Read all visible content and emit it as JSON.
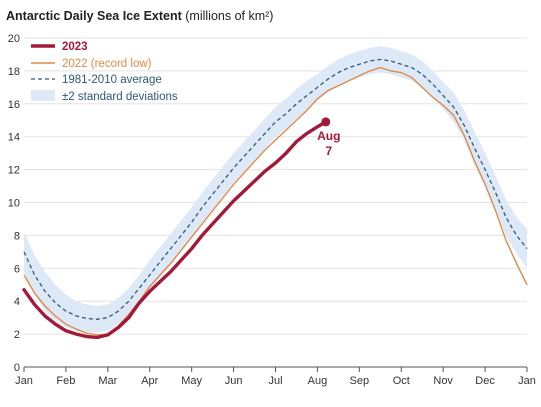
{
  "chart_data": {
    "type": "line",
    "title": "Antarctic Daily Sea Ice Extent",
    "title_unit": "(millions of km²)",
    "xlabel": "",
    "ylabel": "",
    "x_ticks": [
      "Jan",
      "Feb",
      "Mar",
      "Apr",
      "May",
      "Jun",
      "Jul",
      "Aug",
      "Sep",
      "Oct",
      "Nov",
      "Dec",
      "Jan"
    ],
    "xlim": [
      0,
      12
    ],
    "ylim": [
      0,
      20
    ],
    "y_ticks": [
      0,
      2,
      4,
      6,
      8,
      10,
      12,
      14,
      16,
      18,
      20
    ],
    "grid": "horizontal",
    "legend_position": "top-left",
    "series": [
      {
        "name": "2023",
        "color": "#a3193a",
        "style": "solid-thick",
        "x": [
          0,
          0.25,
          0.5,
          0.75,
          1,
          1.25,
          1.5,
          1.75,
          2,
          2.25,
          2.5,
          2.75,
          3,
          3.25,
          3.5,
          3.75,
          4,
          4.25,
          4.5,
          4.75,
          5,
          5.25,
          5.5,
          5.75,
          6,
          6.25,
          6.5,
          6.75,
          7,
          7.2
        ],
        "values": [
          4.7,
          3.8,
          3.1,
          2.6,
          2.2,
          2.0,
          1.85,
          1.8,
          1.95,
          2.4,
          3.0,
          3.9,
          4.6,
          5.2,
          5.8,
          6.5,
          7.2,
          8.0,
          8.7,
          9.4,
          10.1,
          10.7,
          11.3,
          11.9,
          12.4,
          13.0,
          13.7,
          14.2,
          14.6,
          14.9
        ],
        "end_label": [
          "Aug",
          "7"
        ]
      },
      {
        "name": "2022 (record low)",
        "color": "#e08a48",
        "style": "solid-thin",
        "x": [
          0,
          0.25,
          0.5,
          0.75,
          1,
          1.25,
          1.5,
          1.75,
          2,
          2.25,
          2.5,
          2.75,
          3,
          3.25,
          3.5,
          3.75,
          4,
          4.25,
          4.5,
          4.75,
          5,
          5.25,
          5.5,
          5.75,
          6,
          6.25,
          6.5,
          6.75,
          7,
          7.25,
          7.5,
          7.75,
          8,
          8.25,
          8.5,
          8.75,
          9,
          9.25,
          9.5,
          9.75,
          10,
          10.25,
          10.5,
          10.75,
          11,
          11.25,
          11.5,
          11.75,
          12
        ],
        "values": [
          5.6,
          4.5,
          3.7,
          3.1,
          2.6,
          2.3,
          2.05,
          1.95,
          2.0,
          2.5,
          3.2,
          4.0,
          4.9,
          5.6,
          6.3,
          7.1,
          7.9,
          8.7,
          9.5,
          10.3,
          11.1,
          11.8,
          12.5,
          13.2,
          13.8,
          14.4,
          15.0,
          15.6,
          16.3,
          16.8,
          17.1,
          17.4,
          17.7,
          18.0,
          18.2,
          18.0,
          17.9,
          17.6,
          17.0,
          16.4,
          15.9,
          15.3,
          14.1,
          12.5,
          11.1,
          9.5,
          7.7,
          6.3,
          5.0
        ]
      },
      {
        "name": "1981-2010 average",
        "color": "#2f5a72",
        "style": "dashed",
        "x": [
          0,
          0.25,
          0.5,
          0.75,
          1,
          1.25,
          1.5,
          1.75,
          2,
          2.25,
          2.5,
          2.75,
          3,
          3.25,
          3.5,
          3.75,
          4,
          4.25,
          4.5,
          4.75,
          5,
          5.25,
          5.5,
          5.75,
          6,
          6.25,
          6.5,
          6.75,
          7,
          7.25,
          7.5,
          7.75,
          8,
          8.25,
          8.5,
          8.75,
          9,
          9.25,
          9.5,
          9.75,
          10,
          10.25,
          10.5,
          10.75,
          11,
          11.25,
          11.5,
          11.75,
          12
        ],
        "values": [
          7.0,
          5.6,
          4.6,
          3.9,
          3.4,
          3.1,
          2.95,
          2.9,
          3.0,
          3.4,
          4.0,
          4.8,
          5.6,
          6.4,
          7.2,
          8.0,
          8.8,
          9.7,
          10.5,
          11.3,
          12.1,
          12.8,
          13.5,
          14.2,
          14.9,
          15.4,
          16.0,
          16.5,
          17.0,
          17.5,
          17.9,
          18.2,
          18.4,
          18.6,
          18.7,
          18.6,
          18.4,
          18.2,
          17.8,
          17.2,
          16.5,
          15.8,
          14.7,
          13.3,
          12.0,
          10.6,
          9.1,
          8.0,
          7.2
        ]
      },
      {
        "name": "±2 standard deviations",
        "color": "#dde9f7",
        "style": "band",
        "x": [
          0,
          0.25,
          0.5,
          0.75,
          1,
          1.25,
          1.5,
          1.75,
          2,
          2.25,
          2.5,
          2.75,
          3,
          3.25,
          3.5,
          3.75,
          4,
          4.25,
          4.5,
          4.75,
          5,
          5.25,
          5.5,
          5.75,
          6,
          6.25,
          6.5,
          6.75,
          7,
          7.25,
          7.5,
          7.75,
          8,
          8.25,
          8.5,
          8.75,
          9,
          9.25,
          9.5,
          9.75,
          10,
          10.25,
          10.5,
          10.75,
          11,
          11.25,
          11.5,
          11.75,
          12
        ],
        "upper": [
          8.2,
          6.8,
          5.8,
          5.0,
          4.4,
          4.0,
          3.8,
          3.7,
          3.8,
          4.2,
          4.8,
          5.6,
          6.5,
          7.3,
          8.1,
          8.9,
          9.7,
          10.6,
          11.4,
          12.2,
          13.0,
          13.7,
          14.4,
          15.1,
          15.8,
          16.3,
          16.9,
          17.4,
          17.8,
          18.3,
          18.7,
          19.0,
          19.2,
          19.4,
          19.5,
          19.4,
          19.2,
          19.0,
          18.6,
          18.0,
          17.3,
          16.7,
          15.6,
          14.3,
          13.0,
          11.6,
          10.2,
          9.1,
          8.4
        ],
        "lower": [
          5.8,
          4.4,
          3.4,
          2.8,
          2.4,
          2.2,
          2.1,
          2.1,
          2.2,
          2.6,
          3.2,
          4.0,
          4.7,
          5.5,
          6.3,
          7.1,
          7.9,
          8.8,
          9.6,
          10.4,
          11.2,
          11.9,
          12.6,
          13.3,
          14.0,
          14.5,
          15.1,
          15.6,
          16.2,
          16.7,
          17.1,
          17.4,
          17.6,
          17.8,
          17.9,
          17.8,
          17.6,
          17.4,
          17.0,
          16.4,
          15.7,
          14.9,
          13.8,
          12.3,
          11.0,
          9.6,
          8.0,
          6.9,
          6.0
        ]
      }
    ]
  }
}
